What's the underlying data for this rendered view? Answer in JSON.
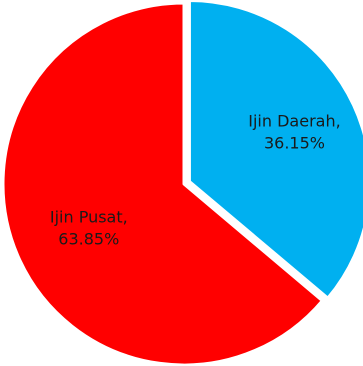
{
  "chart_data": {
    "type": "pie",
    "categories": [
      "Ijin Daerah",
      "Ijin Pusat"
    ],
    "values": [
      36.15,
      63.85
    ],
    "labels": [
      [
        "Ijin Daerah,",
        "36.15%"
      ],
      [
        "Ijin Pusat,",
        "63.85%"
      ]
    ],
    "colors": [
      "#00b0f0",
      "#ff0000"
    ],
    "start_angle_deg": 0,
    "direction": "clockwise",
    "slice_border_color": "#ffffff",
    "legend": "none"
  }
}
